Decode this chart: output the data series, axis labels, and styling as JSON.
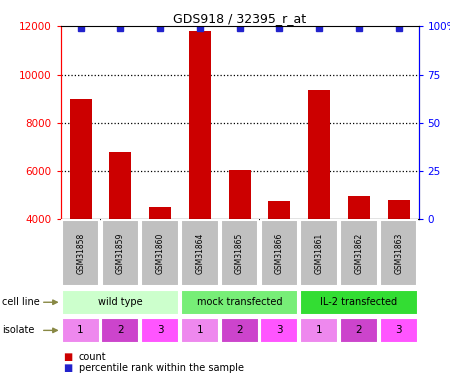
{
  "title": "GDS918 / 32395_r_at",
  "samples": [
    "GSM31858",
    "GSM31859",
    "GSM31860",
    "GSM31864",
    "GSM31865",
    "GSM31866",
    "GSM31861",
    "GSM31862",
    "GSM31863"
  ],
  "counts": [
    9000,
    6800,
    4500,
    11800,
    6050,
    4750,
    9350,
    4950,
    4800
  ],
  "percentile_values": [
    99,
    99,
    99,
    99,
    99,
    99,
    99,
    99,
    99
  ],
  "bar_color": "#cc0000",
  "dot_color": "#2222cc",
  "ylim_left": [
    4000,
    12000
  ],
  "ylim_right": [
    0,
    100
  ],
  "yticks_left": [
    4000,
    6000,
    8000,
    10000,
    12000
  ],
  "yticks_right": [
    0,
    25,
    50,
    75,
    100
  ],
  "cell_lines": [
    {
      "label": "wild type",
      "start": 0,
      "end": 3,
      "color": "#ccffcc"
    },
    {
      "label": "mock transfected",
      "start": 3,
      "end": 6,
      "color": "#77ee77"
    },
    {
      "label": "IL-2 transfected",
      "start": 6,
      "end": 9,
      "color": "#33dd33"
    }
  ],
  "isolates": [
    "1",
    "2",
    "3",
    "1",
    "2",
    "3",
    "1",
    "2",
    "3"
  ],
  "isolate_colors": [
    "#ee88ee",
    "#cc44cc",
    "#ff55ff",
    "#ee88ee",
    "#cc44cc",
    "#ff55ff",
    "#ee88ee",
    "#cc44cc",
    "#ff55ff"
  ],
  "sample_bg_color": "#c0c0c0",
  "legend_count_color": "#cc0000",
  "legend_dot_color": "#2222cc",
  "left_label_color": "#555555",
  "arrow_color": "#888855"
}
